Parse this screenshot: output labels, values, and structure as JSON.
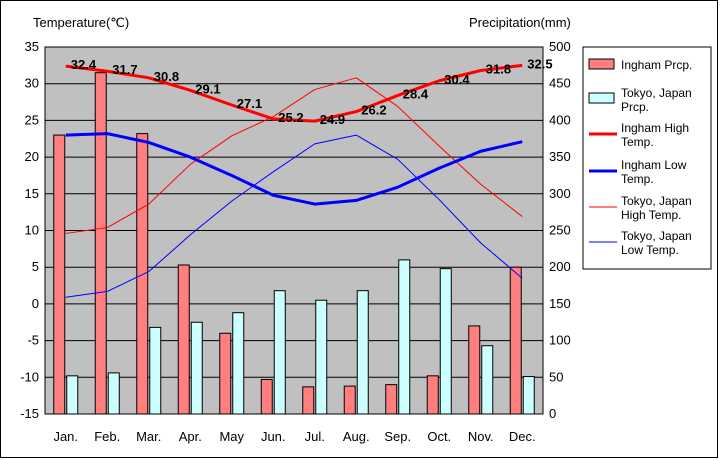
{
  "chart_data": {
    "type": "bar",
    "categories": [
      "Jan.",
      "Feb.",
      "Mar.",
      "Apr.",
      "May",
      "Jun.",
      "Jul.",
      "Aug.",
      "Sep.",
      "Oct.",
      "Nov.",
      "Dec."
    ],
    "ylabel_left": "Temperature(℃)",
    "ylabel_right": "Precipitation(mm)",
    "ylim_left": [
      -15,
      35
    ],
    "ylim_right": [
      0,
      500
    ],
    "yticks_left": [
      "35",
      "30",
      "25",
      "20",
      "15",
      "10",
      "5",
      "0",
      "-5",
      "-10",
      "-15"
    ],
    "yticks_right": [
      "500",
      "450",
      "400",
      "350",
      "300",
      "250",
      "200",
      "150",
      "100",
      "50",
      "0"
    ],
    "grid": true,
    "legend_position": "right",
    "series": [
      {
        "name": "Ingham Prcp.",
        "legend": "Ingham Prcp.",
        "kind": "bar",
        "axis": "right",
        "color": "#ff7f7f",
        "values": [
          380,
          465,
          382,
          203,
          110,
          47,
          37,
          38,
          40,
          52,
          120,
          200
        ]
      },
      {
        "name": "Tokyo, Japan Prcp.",
        "legend": "Tokyo, Japan Prcp.",
        "kind": "bar",
        "axis": "right",
        "color": "#ccffff",
        "values": [
          52,
          56,
          118,
          125,
          138,
          168,
          155,
          168,
          210,
          198,
          93,
          51
        ]
      },
      {
        "name": "Ingham High Temp.",
        "legend": "Ingham High Temp.",
        "kind": "line",
        "axis": "left",
        "color": "#ff0000",
        "width": 3,
        "values": [
          32.4,
          31.7,
          30.8,
          29.1,
          27.1,
          25.2,
          24.9,
          26.2,
          28.4,
          30.4,
          31.8,
          32.5
        ],
        "labels": [
          "32.4",
          "31.7",
          "30.8",
          "29.1",
          "27.1",
          "25.2",
          "24.9",
          "26.2",
          "28.4",
          "30.4",
          "31.8",
          "32.5"
        ]
      },
      {
        "name": "Ingham Low Temp.",
        "legend": "Ingham Low Temp.",
        "kind": "line",
        "axis": "left",
        "color": "#0000ff",
        "width": 3,
        "values": [
          23.0,
          23.2,
          22.0,
          20.0,
          17.5,
          14.8,
          13.6,
          14.1,
          15.9,
          18.5,
          20.8,
          22.1
        ]
      },
      {
        "name": "Tokyo, Japan High Temp.",
        "legend": "Tokyo, Japan High Temp.",
        "kind": "line",
        "axis": "left",
        "color": "#ff0000",
        "width": 1,
        "values": [
          9.6,
          10.4,
          13.6,
          19.0,
          22.9,
          25.5,
          29.2,
          30.8,
          26.9,
          21.5,
          16.3,
          11.9
        ]
      },
      {
        "name": "Tokyo, Japan Low Temp.",
        "legend": "Tokyo, Japan Low Temp.",
        "kind": "line",
        "axis": "left",
        "color": "#0000ff",
        "width": 1,
        "values": [
          0.9,
          1.7,
          4.4,
          9.4,
          14.0,
          18.0,
          21.8,
          23.0,
          19.7,
          14.2,
          8.3,
          3.5
        ]
      }
    ]
  }
}
